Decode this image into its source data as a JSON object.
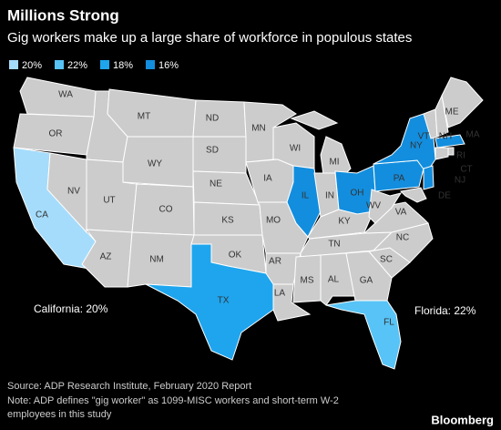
{
  "header": {
    "title": "Millions Strong",
    "subtitle": "Gig workers make up a large share of workforce in populous states"
  },
  "legend": [
    {
      "label": "20%",
      "color": "#a5dcfb"
    },
    {
      "label": "22%",
      "color": "#57c3f6"
    },
    {
      "label": "18%",
      "color": "#1ea5ee"
    },
    {
      "label": "16%",
      "color": "#138ede"
    }
  ],
  "default_color": "#cccccc",
  "states": [
    {
      "label": "WA"
    },
    {
      "label": "OR"
    },
    {
      "label": "CA",
      "color": "#a5dcfb"
    },
    {
      "label": "NV"
    },
    {
      "label": "UT"
    },
    {
      "label": "AZ"
    },
    {
      "label": "MT"
    },
    {
      "label": "WY"
    },
    {
      "label": "CO"
    },
    {
      "label": "NM"
    },
    {
      "label": "ND"
    },
    {
      "label": "SD"
    },
    {
      "label": "NE"
    },
    {
      "label": "KS"
    },
    {
      "label": "OK"
    },
    {
      "label": "TX",
      "color": "#1ea5ee"
    },
    {
      "label": "MN"
    },
    {
      "label": "IA"
    },
    {
      "label": "MO"
    },
    {
      "label": "AR"
    },
    {
      "label": "LA"
    },
    {
      "label": "WI"
    },
    {
      "label": "MI"
    },
    {
      "label": "IL",
      "color": "#138ede"
    },
    {
      "label": "IN"
    },
    {
      "label": "OH",
      "color": "#138ede"
    },
    {
      "label": "KY"
    },
    {
      "label": "TN"
    },
    {
      "label": "MS"
    },
    {
      "label": "AL"
    },
    {
      "label": "GA"
    },
    {
      "label": "SC"
    },
    {
      "label": "NC"
    },
    {
      "label": "VA"
    },
    {
      "label": "WV"
    },
    {
      "label": "PA",
      "color": "#138ede"
    },
    {
      "label": "NY",
      "color": "#138ede"
    },
    {
      "label": "VT"
    },
    {
      "label": "NH"
    },
    {
      "label": "ME"
    },
    {
      "label": "MA",
      "color": "#138ede"
    },
    {
      "label": "RI"
    },
    {
      "label": "CT"
    },
    {
      "label": "NJ",
      "color": "#138ede"
    },
    {
      "label": "DE"
    },
    {
      "label": "FL",
      "color": "#57c3f6"
    }
  ],
  "annotations": [
    "California: 20%",
    "Florida: 22%"
  ],
  "footer": {
    "source": "Source: ADP Research Institute, February 2020 Report",
    "note": [
      "Note: ADP defines \"gig worker\" as 1099-MISC workers and short-term W-2",
      "employees in this study"
    ],
    "brand": "Bloomberg"
  }
}
